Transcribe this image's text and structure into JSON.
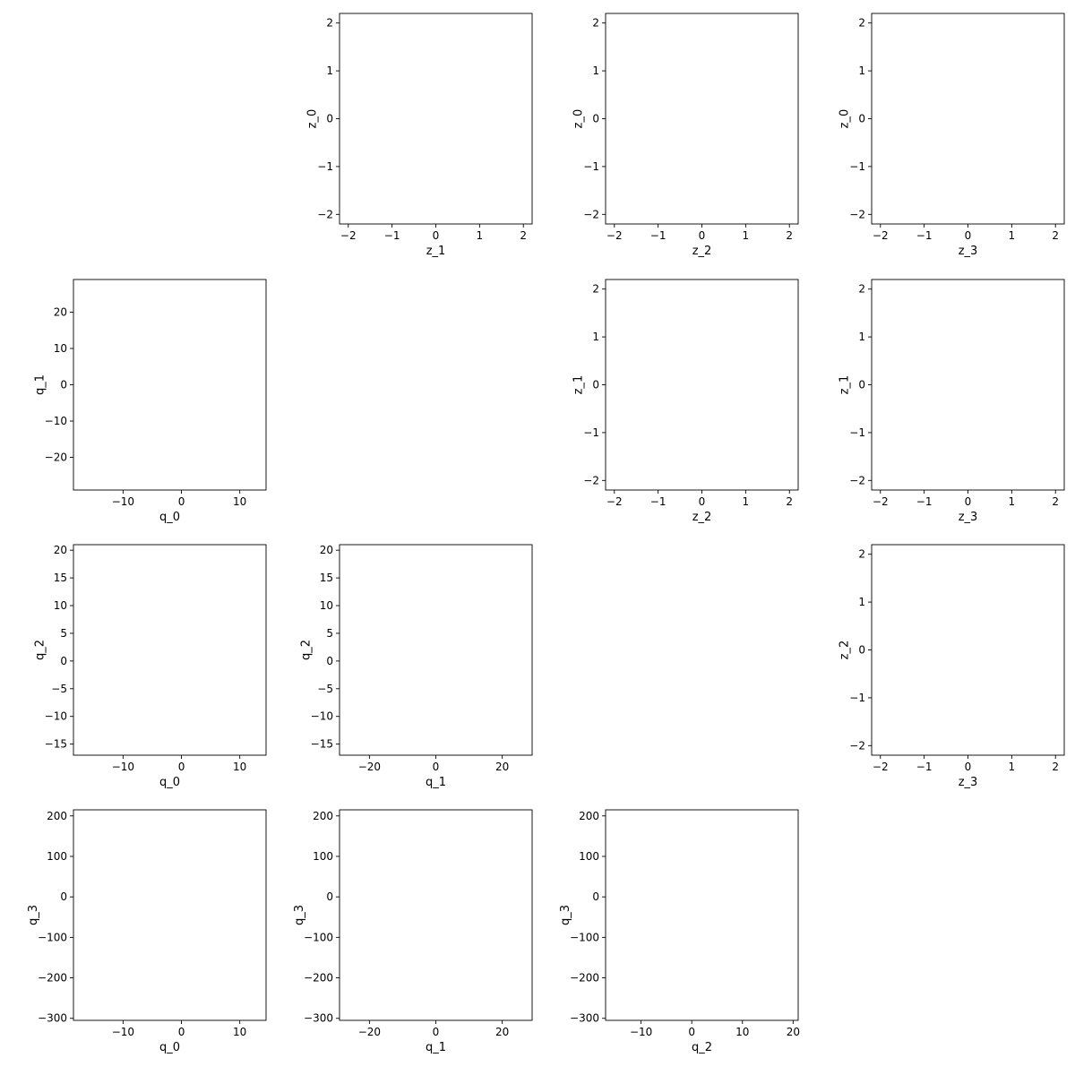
{
  "chart_data": [
    {
      "type": "scatter",
      "row": 0,
      "col": 1,
      "xlabel": "z_1",
      "ylabel": "z_0",
      "xlim": [
        -2.2,
        2.2
      ],
      "ylim": [
        -2.2,
        2.2
      ],
      "xticks": [
        -2,
        -1,
        0,
        1,
        2
      ],
      "yticks": [
        -2,
        -1,
        0,
        1,
        2
      ],
      "generator": "radial"
    },
    {
      "type": "scatter",
      "row": 0,
      "col": 2,
      "xlabel": "z_2",
      "ylabel": "z_0",
      "xlim": [
        -2.2,
        2.2
      ],
      "ylim": [
        -2.2,
        2.2
      ],
      "xticks": [
        -2,
        -1,
        0,
        1,
        2
      ],
      "yticks": [
        -2,
        -1,
        0,
        1,
        2
      ],
      "generator": "radial"
    },
    {
      "type": "scatter",
      "row": 0,
      "col": 3,
      "xlabel": "z_3",
      "ylabel": "z_0",
      "xlim": [
        -2.2,
        2.2
      ],
      "ylim": [
        -2.2,
        2.2
      ],
      "xticks": [
        -2,
        -1,
        0,
        1,
        2
      ],
      "yticks": [
        -2,
        -1,
        0,
        1,
        2
      ],
      "generator": "radial"
    },
    {
      "type": "scatter",
      "row": 1,
      "col": 0,
      "xlabel": "q_0",
      "ylabel": "q_1",
      "xlim": [
        -18.5,
        14.5
      ],
      "ylim": [
        -29,
        29
      ],
      "xticks": [
        -10,
        0,
        10
      ],
      "yticks": [
        -20,
        -10,
        0,
        10,
        20
      ],
      "generator": "q0q1"
    },
    {
      "type": "scatter",
      "row": 1,
      "col": 2,
      "xlabel": "z_2",
      "ylabel": "z_1",
      "xlim": [
        -2.2,
        2.2
      ],
      "ylim": [
        -2.2,
        2.2
      ],
      "xticks": [
        -2,
        -1,
        0,
        1,
        2
      ],
      "yticks": [
        -2,
        -1,
        0,
        1,
        2
      ],
      "generator": "radial"
    },
    {
      "type": "scatter",
      "row": 1,
      "col": 3,
      "xlabel": "z_3",
      "ylabel": "z_1",
      "xlim": [
        -2.2,
        2.2
      ],
      "ylim": [
        -2.2,
        2.2
      ],
      "xticks": [
        -2,
        -1,
        0,
        1,
        2
      ],
      "yticks": [
        -2,
        -1,
        0,
        1,
        2
      ],
      "generator": "radial"
    },
    {
      "type": "scatter",
      "row": 2,
      "col": 0,
      "xlabel": "q_0",
      "ylabel": "q_2",
      "xlim": [
        -18.5,
        14.5
      ],
      "ylim": [
        -17,
        21
      ],
      "xticks": [
        -10,
        0,
        10
      ],
      "yticks": [
        -15,
        -10,
        -5,
        0,
        5,
        10,
        15,
        20
      ],
      "generator": "q0q2"
    },
    {
      "type": "scatter",
      "row": 2,
      "col": 1,
      "xlabel": "q_1",
      "ylabel": "q_2",
      "xlim": [
        -29,
        29
      ],
      "ylim": [
        -17,
        21
      ],
      "xticks": [
        -20,
        0,
        20
      ],
      "yticks": [
        -15,
        -10,
        -5,
        0,
        5,
        10,
        15,
        20
      ],
      "generator": "q1q2"
    },
    {
      "type": "scatter",
      "row": 2,
      "col": 3,
      "xlabel": "z_3",
      "ylabel": "z_2",
      "xlim": [
        -2.2,
        2.2
      ],
      "ylim": [
        -2.2,
        2.2
      ],
      "xticks": [
        -2,
        -1,
        0,
        1,
        2
      ],
      "yticks": [
        -2,
        -1,
        0,
        1,
        2
      ],
      "generator": "radial"
    },
    {
      "type": "scatter",
      "row": 3,
      "col": 0,
      "xlabel": "q_0",
      "ylabel": "q_3",
      "xlim": [
        -18.5,
        14.5
      ],
      "ylim": [
        -305,
        215
      ],
      "xticks": [
        -10,
        0,
        10
      ],
      "yticks": [
        -300,
        -200,
        -100,
        0,
        100,
        200
      ],
      "generator": "q0q3"
    },
    {
      "type": "scatter",
      "row": 3,
      "col": 1,
      "xlabel": "q_1",
      "ylabel": "q_3",
      "xlim": [
        -29,
        29
      ],
      "ylim": [
        -305,
        215
      ],
      "xticks": [
        -20,
        0,
        20
      ],
      "yticks": [
        -300,
        -200,
        -100,
        0,
        100,
        200
      ],
      "generator": "q1q3"
    },
    {
      "type": "scatter",
      "row": 3,
      "col": 2,
      "xlabel": "q_2",
      "ylabel": "q_3",
      "xlim": [
        -17,
        21
      ],
      "ylim": [
        -305,
        215
      ],
      "xticks": [
        -10,
        0,
        10,
        20
      ],
      "yticks": [
        -300,
        -200,
        -100,
        0,
        100,
        200
      ],
      "generator": "q2q3"
    }
  ],
  "series_colors": {
    "inner": "#ff7f0e",
    "middle": "#2ca02c",
    "outer": "#d62728"
  }
}
